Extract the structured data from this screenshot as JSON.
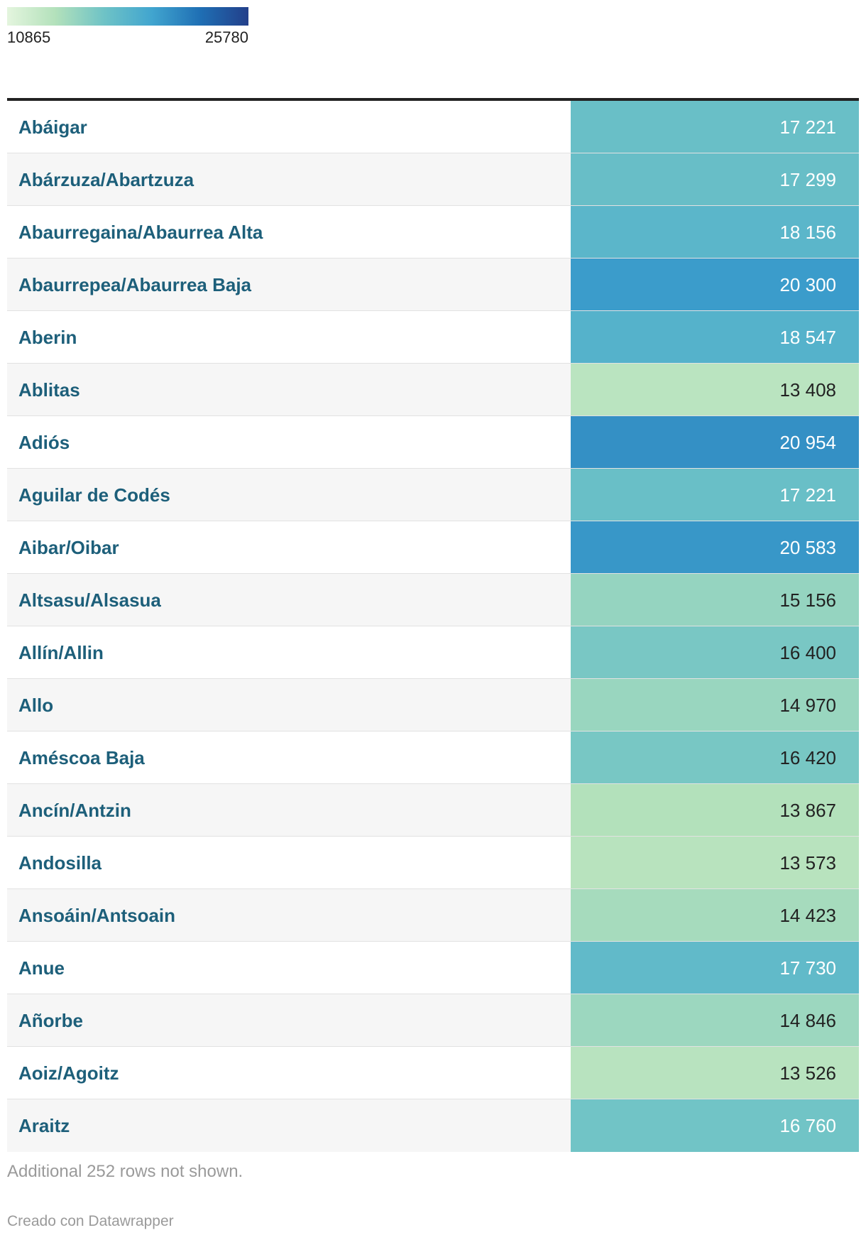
{
  "legend": {
    "min": "10865",
    "max": "25780"
  },
  "chart_data": {
    "type": "table",
    "value_min": 10865,
    "value_max": 25780,
    "color_scale": [
      "#e4f5de",
      "#b3e1bb",
      "#6fc3c6",
      "#41a5cf",
      "#1f6fb4",
      "#233f8a"
    ],
    "rows": [
      {
        "name": "Abáigar",
        "value": 17221,
        "label": "17 221"
      },
      {
        "name": "Abárzuza/Abartzuza",
        "value": 17299,
        "label": "17 299"
      },
      {
        "name": "Abaurregaina/Abaurrea Alta",
        "value": 18156,
        "label": "18 156"
      },
      {
        "name": "Abaurrepea/Abaurrea Baja",
        "value": 20300,
        "label": "20 300"
      },
      {
        "name": "Aberin",
        "value": 18547,
        "label": "18 547"
      },
      {
        "name": "Ablitas",
        "value": 13408,
        "label": "13 408"
      },
      {
        "name": "Adiós",
        "value": 20954,
        "label": "20 954"
      },
      {
        "name": "Aguilar de Codés",
        "value": 17221,
        "label": "17 221"
      },
      {
        "name": "Aibar/Oibar",
        "value": 20583,
        "label": "20 583"
      },
      {
        "name": "Altsasu/Alsasua",
        "value": 15156,
        "label": "15 156"
      },
      {
        "name": "Allín/Allin",
        "value": 16400,
        "label": "16 400"
      },
      {
        "name": "Allo",
        "value": 14970,
        "label": "14 970"
      },
      {
        "name": "Améscoa Baja",
        "value": 16420,
        "label": "16 420"
      },
      {
        "name": "Ancín/Antzin",
        "value": 13867,
        "label": "13 867"
      },
      {
        "name": "Andosilla",
        "value": 13573,
        "label": "13 573"
      },
      {
        "name": "Ansoáin/Antsoain",
        "value": 14423,
        "label": "14 423"
      },
      {
        "name": "Anue",
        "value": 17730,
        "label": "17 730"
      },
      {
        "name": "Añorbe",
        "value": 14846,
        "label": "14 846"
      },
      {
        "name": "Aoiz/Agoitz",
        "value": 13526,
        "label": "13 526"
      },
      {
        "name": "Araitz",
        "value": 16760,
        "label": "16 760"
      }
    ]
  },
  "footer": {
    "note": "Additional 252 rows not shown.",
    "credit": "Creado con Datawrapper"
  }
}
